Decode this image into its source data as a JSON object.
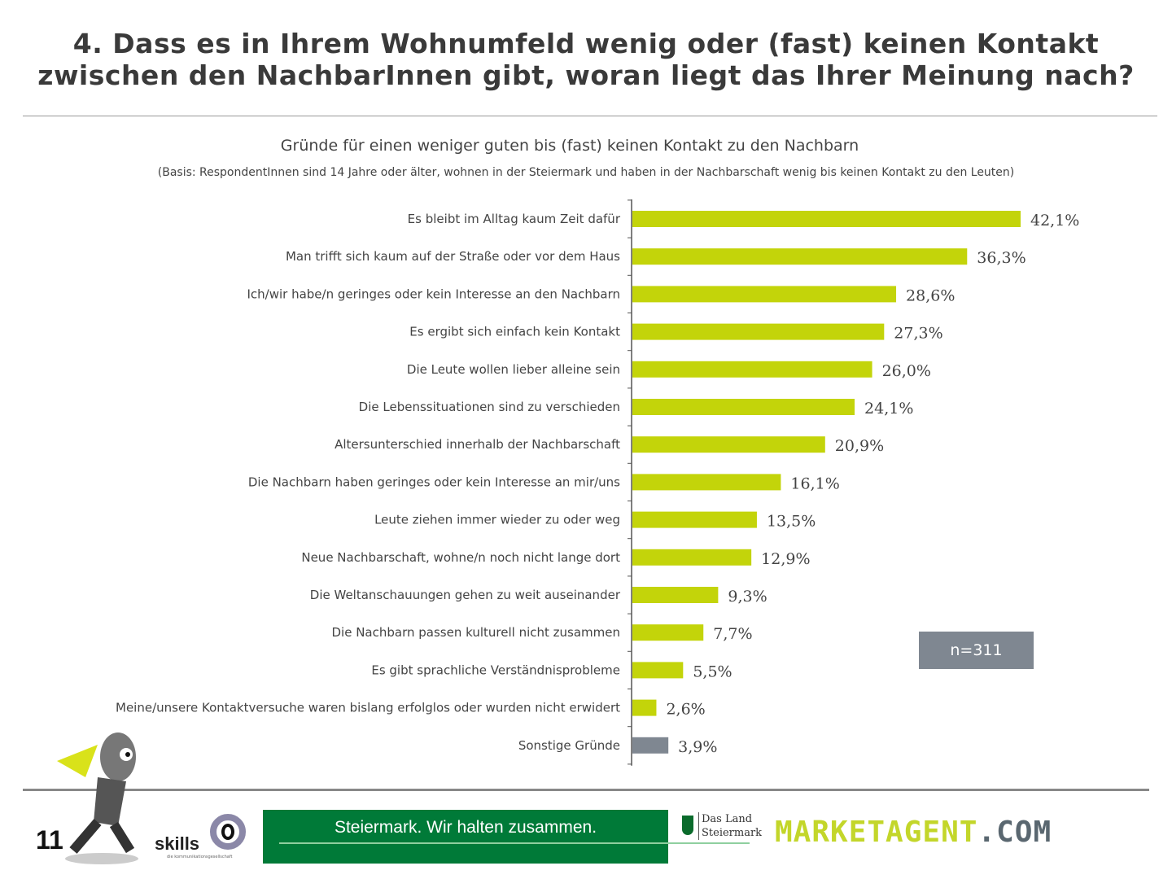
{
  "header": {
    "title_line1": "4. Dass es in Ihrem Wohnumfeld wenig  oder (fast) keinen Kontakt",
    "title_line2": "zwischen den NachbarInnen gibt, woran liegt das Ihrer Meinung nach?"
  },
  "chart_data": {
    "type": "bar",
    "orientation": "horizontal",
    "title": "Gründe für einen weniger guten bis (fast) keinen Kontakt zu den Nachbarn",
    "subtitle": "(Basis: RespondentInnen sind 14 Jahre oder älter, wohnen in der Steiermark und haben in der Nachbarschaft wenig bis keinen Kontakt zu den Leuten)",
    "categories": [
      "Es bleibt im Alltag kaum Zeit dafür",
      "Man trifft sich kaum auf der Straße oder vor dem Haus",
      "Ich/wir habe/n geringes oder kein Interesse an den Nachbarn",
      "Es ergibt sich einfach kein Kontakt",
      "Die Leute wollen lieber alleine sein",
      "Die Lebenssituationen sind zu verschieden",
      "Altersunterschied innerhalb der Nachbarschaft",
      "Die Nachbarn haben geringes oder kein Interesse an mir/uns",
      "Leute ziehen immer wieder zu oder weg",
      "Neue Nachbarschaft, wohne/n noch nicht lange dort",
      "Die Weltanschauungen gehen zu weit auseinander",
      "Die Nachbarn passen kulturell nicht zusammen",
      "Es gibt sprachliche Verständnisprobleme",
      "Meine/unsere Kontaktversuche waren bislang erfolglos oder wurden nicht erwidert",
      "Sonstige Gründe"
    ],
    "values": [
      42.1,
      36.3,
      28.6,
      27.3,
      26.0,
      24.1,
      20.9,
      16.1,
      13.5,
      12.9,
      9.3,
      7.7,
      5.5,
      2.6,
      3.9
    ],
    "labels": [
      "42,1%",
      "36,3%",
      "28,6%",
      "27,3%",
      "26,0%",
      "24,1%",
      "20,9%",
      "16,1%",
      "13,5%",
      "12,9%",
      "9,3%",
      "7,7%",
      "5,5%",
      "2,6%",
      "3,9%"
    ],
    "unit": "%",
    "xlim": [
      0,
      50
    ],
    "colors": {
      "main": "#c3d40a",
      "other": "#7f8791"
    },
    "n_label": "n=311"
  },
  "footer": {
    "page_number": "11",
    "skills": "skills",
    "skills_sub": "die kommunikationsgesellschaft",
    "banner": "Steiermark. Wir halten zusammen.",
    "land_line1": "Das Land",
    "land_line2": "Steiermark",
    "brand_main": "MARKETAGENT",
    "brand_suffix": ".COM"
  }
}
